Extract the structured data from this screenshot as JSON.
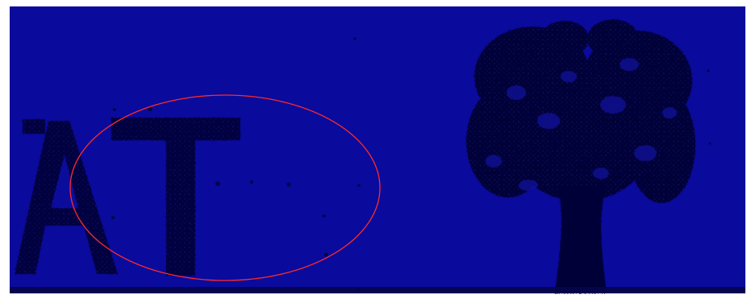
{
  "scene": {
    "description_free": true,
    "letters": "AT",
    "colors": {
      "background": "#0a0a9c",
      "silhouette": "#050538",
      "ink": "#02021a",
      "annotation": "#ff2a2a",
      "frame": "#ffffff"
    },
    "shapes": [
      "letters-silhouette",
      "tree-silhouette",
      "annotation-ellipse"
    ]
  }
}
